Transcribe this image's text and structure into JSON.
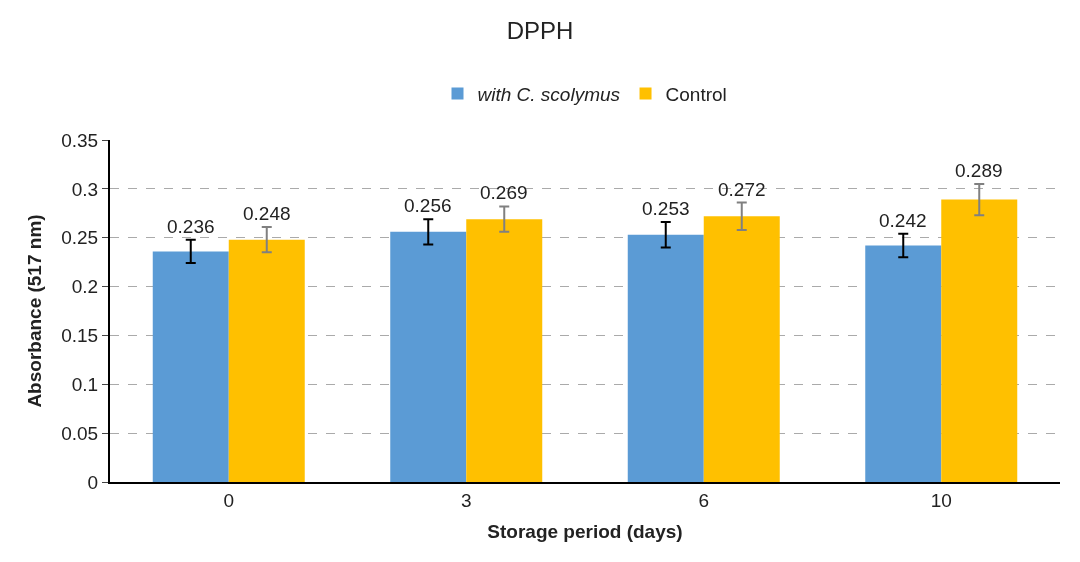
{
  "chart_data": {
    "type": "bar",
    "title": "DPPH",
    "xlabel": "Storage period (days)",
    "ylabel": "Absorbance (517 nm)",
    "categories": [
      "0",
      "3",
      "6",
      "10"
    ],
    "series": [
      {
        "name": "with C. scolymus",
        "color": "#5b9bd5",
        "values": [
          0.236,
          0.256,
          0.253,
          0.242
        ],
        "errors": [
          0.012,
          0.013,
          0.013,
          0.012
        ]
      },
      {
        "name": "Control",
        "color": "#ffc000",
        "values": [
          0.248,
          0.269,
          0.272,
          0.289
        ],
        "errors": [
          0.013,
          0.013,
          0.014,
          0.016
        ]
      }
    ],
    "ylim": [
      0,
      0.35
    ],
    "yticks": [
      0,
      0.05,
      0.1,
      0.15,
      0.2,
      0.25,
      0.3,
      0.35
    ],
    "grid": "y",
    "legend": "top",
    "data_labels": true
  }
}
